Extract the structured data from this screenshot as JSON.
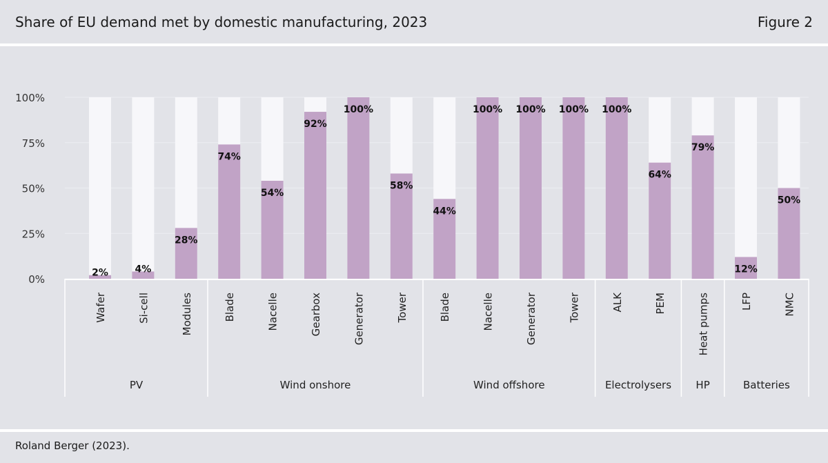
{
  "header": {
    "title": "Share of EU demand met by domestic manufacturing, 2023",
    "figure_label": "Figure 2"
  },
  "footer": {
    "source": "Roland Berger (2023)."
  },
  "chart_data": {
    "type": "bar",
    "stacked_background": true,
    "categories": [
      "Wafer",
      "Si-cell",
      "Modules",
      "Blade",
      "Nacelle",
      "Gearbox",
      "Generator",
      "Tower",
      "Blade",
      "Nacelle",
      "Generator",
      "Tower",
      "ALK",
      "PEM",
      "Heat pumps",
      "LFP",
      "NMC"
    ],
    "groups": [
      {
        "label": "PV",
        "count": 3
      },
      {
        "label": "Wind onshore",
        "count": 5
      },
      {
        "label": "Wind offshore",
        "count": 4
      },
      {
        "label": "Electrolysers",
        "count": 2
      },
      {
        "label": "HP",
        "count": 1
      },
      {
        "label": "Batteries",
        "count": 2
      }
    ],
    "values": [
      2,
      4,
      28,
      74,
      54,
      92,
      100,
      58,
      44,
      100,
      100,
      100,
      100,
      64,
      79,
      12,
      50
    ],
    "data_labels": [
      "2%",
      "4%",
      "28%",
      "74%",
      "54%",
      "92%",
      "100%",
      "58%",
      "44%",
      "100%",
      "100%",
      "100%",
      "100%",
      "64%",
      "79%",
      "12%",
      "50%"
    ],
    "ylim": [
      0,
      100
    ],
    "yticks": [
      0,
      25,
      50,
      75,
      100
    ],
    "ytick_labels": [
      "0%",
      "25%",
      "50%",
      "75%",
      "100%"
    ],
    "grid": true,
    "colors": {
      "bar": "#c1a3c6",
      "remainder": "#f7f7fa",
      "background": "#e2e3e8"
    }
  }
}
